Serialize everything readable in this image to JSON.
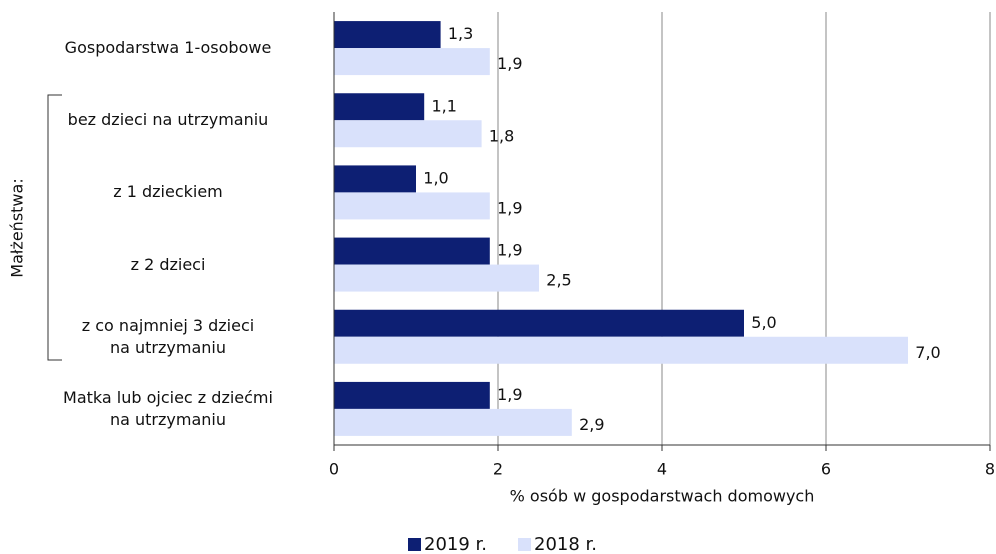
{
  "chart_data": {
    "type": "bar",
    "orientation": "horizontal",
    "categories": [
      "Gospodarstwa 1-osobowe",
      "bez dzieci na utrzymaniu",
      "z 1 dzieckiem",
      "z 2 dzieci",
      "z co najmniej 3 dzieci\nna utrzymaniu",
      "Matka lub ojciec z dziećmi\nna utrzymaniu"
    ],
    "series": [
      {
        "name": "2019 r.",
        "color": "#0d1f73",
        "values": [
          1.3,
          1.1,
          1.0,
          1.9,
          5.0,
          1.9
        ],
        "value_labels": [
          "1,3",
          "1,1",
          "1,0",
          "1,9",
          "5,0",
          "1,9"
        ]
      },
      {
        "name": "2018 r.",
        "color": "#d9e1fb",
        "values": [
          1.9,
          1.8,
          1.9,
          2.5,
          7.0,
          2.9
        ],
        "value_labels": [
          "1,9",
          "1,8",
          "1,9",
          "2,5",
          "7,0",
          "2,9"
        ]
      }
    ],
    "xlabel": "% osób w gospodarstwach domowych",
    "xlim": [
      0,
      8
    ],
    "xticks": [
      0,
      2,
      4,
      6,
      8
    ],
    "grid": true,
    "legend": "bottom",
    "group_label": "Małżeństwa:"
  }
}
